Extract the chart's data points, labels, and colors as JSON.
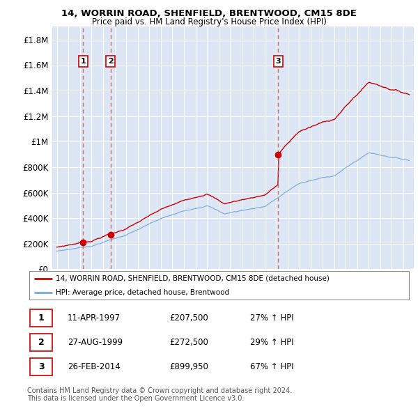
{
  "title_line1": "14, WORRIN ROAD, SHENFIELD, BRENTWOOD, CM15 8DE",
  "title_line2": "Price paid vs. HM Land Registry's House Price Index (HPI)",
  "ylim": [
    0,
    1900000
  ],
  "yticks": [
    0,
    200000,
    400000,
    600000,
    800000,
    1000000,
    1200000,
    1400000,
    1600000,
    1800000
  ],
  "ytick_labels": [
    "£0",
    "£200K",
    "£400K",
    "£600K",
    "£800K",
    "£1M",
    "£1.2M",
    "£1.4M",
    "£1.6M",
    "£1.8M"
  ],
  "transactions": [
    {
      "date_num": 1997.28,
      "price": 207500,
      "label": "1"
    },
    {
      "date_num": 1999.65,
      "price": 272500,
      "label": "2"
    },
    {
      "date_num": 2014.15,
      "price": 899950,
      "label": "3"
    }
  ],
  "vline_dates": [
    1997.28,
    1999.65,
    2014.15
  ],
  "legend_entries": [
    "14, WORRIN ROAD, SHENFIELD, BRENTWOOD, CM15 8DE (detached house)",
    "HPI: Average price, detached house, Brentwood"
  ],
  "table_rows": [
    {
      "num": "1",
      "date": "11-APR-1997",
      "price": "£207,500",
      "pct": "27% ↑ HPI"
    },
    {
      "num": "2",
      "date": "27-AUG-1999",
      "price": "£272,500",
      "pct": "29% ↑ HPI"
    },
    {
      "num": "3",
      "date": "26-FEB-2014",
      "price": "£899,950",
      "pct": "67% ↑ HPI"
    }
  ],
  "footer": "Contains HM Land Registry data © Crown copyright and database right 2024.\nThis data is licensed under the Open Government Licence v3.0.",
  "price_line_color": "#cc0000",
  "hpi_line_color": "#7aa8d4",
  "vline_color": "#e05050",
  "plot_bg_color": "#dce6f4",
  "grid_color": "#ffffff",
  "label_box_color": "#cc0000",
  "xlim_left": 1994.6,
  "xlim_right": 2025.9
}
